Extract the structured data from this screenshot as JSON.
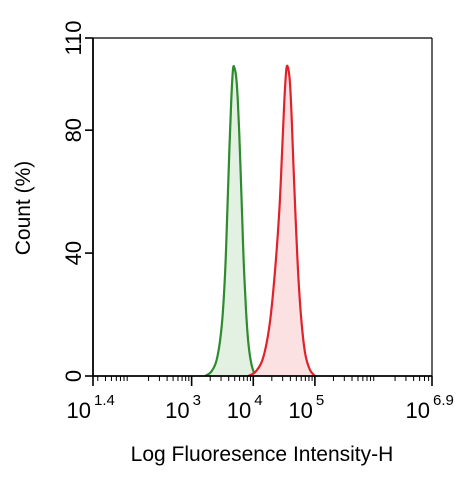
{
  "chart_data": {
    "type": "area",
    "title": "",
    "xlabel": "Log Fluoresence Intensity-H",
    "ylabel": "Count  (%)",
    "x_scale": "log",
    "xlim": [
      25.1,
      7943282
    ],
    "ylim": [
      0,
      110
    ],
    "grid": false,
    "x_ticks": [
      {
        "base": "10",
        "exp": "1.4",
        "value": 25.1
      },
      {
        "base": "10",
        "exp": "3",
        "value": 1000
      },
      {
        "base": "10",
        "exp": "4",
        "value": 10000
      },
      {
        "base": "10",
        "exp": "5",
        "value": 100000
      },
      {
        "base": "10",
        "exp": "6.9",
        "value": 7943282
      }
    ],
    "y_ticks": [
      {
        "label": "0",
        "value": 0
      },
      {
        "label": "40",
        "value": 40
      },
      {
        "label": "80",
        "value": 80
      },
      {
        "label": "110",
        "value": 110
      }
    ],
    "series": [
      {
        "color": "#2e8b2e",
        "fill": "#e3f1e3",
        "x": [
          1650,
          2100,
          2600,
          3100,
          3500,
          3800,
          4100,
          4400,
          4700,
          5000,
          5300,
          5600,
          5900,
          6200,
          6600,
          7000,
          7600,
          8300,
          9300,
          10700
        ],
        "y": [
          0,
          1.5,
          6,
          17,
          34,
          54,
          74,
          90,
          100,
          100,
          97,
          90,
          80,
          68,
          52,
          37,
          22,
          11,
          4,
          0
        ]
      },
      {
        "color": "#e0222a",
        "fill": "#fce1e3",
        "x": [
          8300,
          11000,
          14500,
          18500,
          22500,
          26500,
          29500,
          32000,
          34500,
          37000,
          39500,
          42000,
          45000,
          49000,
          54000,
          61000,
          70000,
          83000,
          100000
        ],
        "y": [
          0,
          1.5,
          6,
          17,
          34,
          54,
          74,
          90,
          100,
          100,
          95,
          84,
          68,
          50,
          32,
          17,
          7,
          2,
          0
        ]
      }
    ]
  }
}
